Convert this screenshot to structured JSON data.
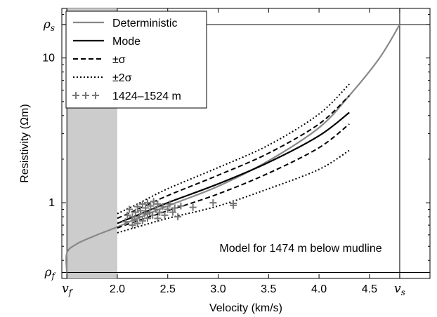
{
  "chart_data": {
    "type": "line",
    "xlabel": "Velocity (km/s)",
    "ylabel": "Resistivity (Ωm)",
    "x_scale": "linear",
    "y_scale": "log",
    "xlim": [
      1.45,
      5.1
    ],
    "ylim": [
      0.3,
      22
    ],
    "x_ticks": [
      {
        "value": 1.5,
        "label": "v_f",
        "symbolic": true
      },
      {
        "value": 2.0,
        "label": "2.0"
      },
      {
        "value": 2.5,
        "label": "2.5"
      },
      {
        "value": 3.0,
        "label": "3.0"
      },
      {
        "value": 3.5,
        "label": "3.5"
      },
      {
        "value": 4.0,
        "label": "4.0"
      },
      {
        "value": 4.5,
        "label": "4.5"
      },
      {
        "value": 4.8,
        "label": "v_s",
        "symbolic": true
      }
    ],
    "y_ticks": [
      {
        "value": 0.33,
        "label": "ρ_f",
        "symbolic": true
      },
      {
        "value": 1,
        "label": "1"
      },
      {
        "value": 10,
        "label": "10"
      },
      {
        "value": 17,
        "label": "ρ_s",
        "symbolic": true
      }
    ],
    "reference_lines": {
      "vertical": [
        1.5,
        4.8
      ],
      "horizontal": [
        0.33,
        17
      ]
    },
    "shaded_region": {
      "x": [
        1.5,
        2.0
      ],
      "color": "#cccccc"
    },
    "annotation": "Model for 1474 m below mudline",
    "legend": {
      "placement": "top-left",
      "entries": [
        {
          "label": "Deterministic",
          "style": "solid-gray"
        },
        {
          "label": "Mode",
          "style": "solid-black"
        },
        {
          "label": "±σ",
          "style": "dashed"
        },
        {
          "label": "±2σ",
          "style": "dotted"
        },
        {
          "label": "1424–1524 m",
          "style": "plus-markers"
        }
      ]
    },
    "series": [
      {
        "name": "Deterministic",
        "style": "solid-gray",
        "color": "#888888",
        "points": [
          [
            1.5,
            0.33
          ],
          [
            1.5,
            0.45
          ],
          [
            1.6,
            0.52
          ],
          [
            1.8,
            0.6
          ],
          [
            2.0,
            0.68
          ],
          [
            2.2,
            0.78
          ],
          [
            2.5,
            0.95
          ],
          [
            3.0,
            1.3
          ],
          [
            3.5,
            1.95
          ],
          [
            4.0,
            3.3
          ],
          [
            4.3,
            5.5
          ],
          [
            4.6,
            10
          ],
          [
            4.8,
            17
          ]
        ]
      },
      {
        "name": "Mode",
        "style": "solid-black",
        "color": "#000000",
        "points": [
          [
            2.0,
            0.72
          ],
          [
            2.2,
            0.82
          ],
          [
            2.5,
            1.0
          ],
          [
            3.0,
            1.35
          ],
          [
            3.5,
            1.9
          ],
          [
            4.0,
            2.9
          ],
          [
            4.3,
            4.2
          ]
        ]
      },
      {
        "name": "+σ",
        "style": "dashed",
        "color": "#000000",
        "points": [
          [
            2.0,
            0.78
          ],
          [
            2.2,
            0.9
          ],
          [
            2.5,
            1.12
          ],
          [
            3.0,
            1.55
          ],
          [
            3.5,
            2.2
          ],
          [
            4.0,
            3.5
          ],
          [
            4.3,
            5.5
          ]
        ]
      },
      {
        "name": "-σ",
        "style": "dashed",
        "color": "#000000",
        "points": [
          [
            2.0,
            0.67
          ],
          [
            2.2,
            0.75
          ],
          [
            2.5,
            0.88
          ],
          [
            3.0,
            1.15
          ],
          [
            3.5,
            1.6
          ],
          [
            4.0,
            2.4
          ],
          [
            4.3,
            3.5
          ]
        ]
      },
      {
        "name": "+2σ",
        "style": "dotted",
        "color": "#000000",
        "points": [
          [
            2.0,
            0.84
          ],
          [
            2.2,
            0.98
          ],
          [
            2.5,
            1.25
          ],
          [
            3.0,
            1.75
          ],
          [
            3.5,
            2.5
          ],
          [
            4.0,
            4.1
          ],
          [
            4.3,
            6.6
          ]
        ]
      },
      {
        "name": "-2σ",
        "style": "dotted",
        "color": "#000000",
        "points": [
          [
            2.0,
            0.62
          ],
          [
            2.2,
            0.68
          ],
          [
            2.5,
            0.78
          ],
          [
            3.0,
            0.95
          ],
          [
            3.5,
            1.25
          ],
          [
            4.0,
            1.7
          ],
          [
            4.3,
            2.3
          ]
        ]
      }
    ],
    "scatter": {
      "name": "1424–1524 m",
      "marker": "+",
      "color": "#777777",
      "points": [
        [
          2.08,
          0.74
        ],
        [
          2.1,
          0.82
        ],
        [
          2.12,
          0.9
        ],
        [
          2.15,
          0.7
        ],
        [
          2.15,
          0.8
        ],
        [
          2.17,
          0.76
        ],
        [
          2.18,
          0.86
        ],
        [
          2.2,
          0.72
        ],
        [
          2.2,
          0.94
        ],
        [
          2.22,
          0.8
        ],
        [
          2.23,
          0.88
        ],
        [
          2.25,
          0.75
        ],
        [
          2.25,
          0.98
        ],
        [
          2.27,
          0.84
        ],
        [
          2.28,
          0.92
        ],
        [
          2.3,
          0.78
        ],
        [
          2.3,
          1.0
        ],
        [
          2.32,
          0.86
        ],
        [
          2.33,
          0.95
        ],
        [
          2.35,
          0.82
        ],
        [
          2.36,
          1.02
        ],
        [
          2.38,
          0.9
        ],
        [
          2.4,
          0.78
        ],
        [
          2.4,
          0.98
        ],
        [
          2.42,
          0.86
        ],
        [
          2.45,
          0.94
        ],
        [
          2.47,
          0.82
        ],
        [
          2.5,
          0.9
        ],
        [
          2.52,
          0.98
        ],
        [
          2.55,
          0.86
        ],
        [
          2.57,
          0.92
        ],
        [
          2.6,
          0.8
        ],
        [
          2.63,
          0.95
        ],
        [
          2.75,
          0.93
        ],
        [
          2.95,
          1.0
        ],
        [
          3.15,
          0.99
        ],
        [
          3.15,
          0.96
        ]
      ]
    }
  }
}
